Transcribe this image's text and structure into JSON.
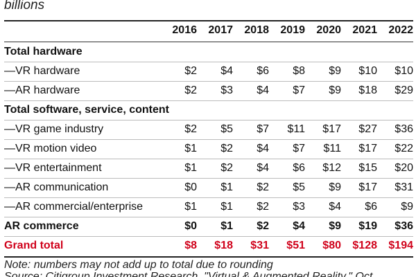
{
  "subtitle": "billions",
  "years": [
    "2016",
    "2017",
    "2018",
    "2019",
    "2020",
    "2021",
    "2022"
  ],
  "sections": {
    "hardware": "Total hardware",
    "software": "Total software, service, content"
  },
  "rows": [
    {
      "label": "—VR hardware",
      "values": [
        "$2",
        "$4",
        "$6",
        "$8",
        "$9",
        "$10",
        "$10"
      ]
    },
    {
      "label": "—AR hardware",
      "values": [
        "$2",
        "$3",
        "$4",
        "$7",
        "$9",
        "$18",
        "$29"
      ]
    },
    {
      "label": "—VR game industry",
      "values": [
        "$2",
        "$5",
        "$7",
        "$11",
        "$17",
        "$27",
        "$36"
      ]
    },
    {
      "label": "—VR motion video",
      "values": [
        "$1",
        "$2",
        "$4",
        "$7",
        "$11",
        "$17",
        "$22"
      ]
    },
    {
      "label": "—VR entertainment",
      "values": [
        "$1",
        "$2",
        "$4",
        "$6",
        "$12",
        "$15",
        "$20"
      ]
    },
    {
      "label": "—AR communication",
      "values": [
        "$0",
        "$1",
        "$2",
        "$5",
        "$9",
        "$17",
        "$31"
      ]
    },
    {
      "label": "—AR commercial/enterprise",
      "values": [
        "$1",
        "$1",
        "$2",
        "$3",
        "$4",
        "$6",
        "$9"
      ]
    }
  ],
  "ar_commerce": {
    "label": "AR commerce",
    "values": [
      "$0",
      "$1",
      "$2",
      "$4",
      "$9",
      "$19",
      "$36"
    ]
  },
  "grand_total": {
    "label": "Grand total",
    "values": [
      "$8",
      "$18",
      "$31",
      "$51",
      "$80",
      "$128",
      "$194"
    ]
  },
  "note": "Note: numbers may not add up to total due to rounding",
  "source": "Source: Citigroup Investment Research, \"Virtual & Augmented Reality,\" Oct",
  "colors": {
    "grand_total": "#d0021b"
  }
}
